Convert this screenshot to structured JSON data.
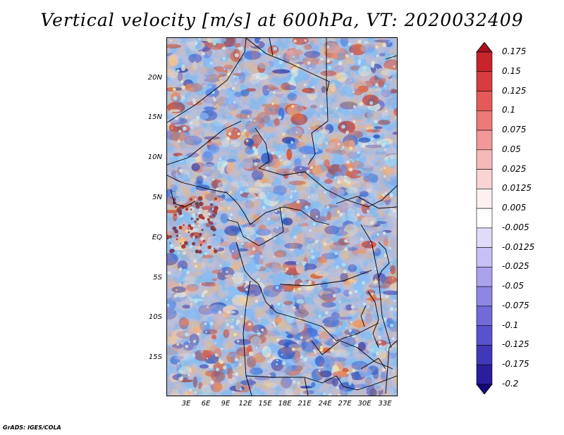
{
  "title": "Vertical velocity [m/s] at 600hPa, VT: 2020032409",
  "map": {
    "field": "Vertical velocity [m/s]",
    "level": "600hPa",
    "valid_time": "2020032409",
    "lat_labels": [
      "20N",
      "15N",
      "10N",
      "5N",
      "EQ",
      "5S",
      "10S",
      "15S"
    ],
    "lon_labels": [
      "3E",
      "6E",
      "9E",
      "12E",
      "15E",
      "18E",
      "21E",
      "24E",
      "27E",
      "30E",
      "33E"
    ]
  },
  "colorbar": {
    "labels": [
      "0.175",
      "0.15",
      "0.125",
      "0.1",
      "0.075",
      "0.05",
      "0.025",
      "0.0125",
      "0.005",
      "-0.005",
      "-0.0125",
      "-0.025",
      "-0.05",
      "-0.075",
      "-0.1",
      "-0.125",
      "-0.175",
      "-0.2"
    ],
    "colors": [
      "#a8101a",
      "#c8242c",
      "#d83c40",
      "#e45a58",
      "#ec7a78",
      "#f29898",
      "#f6b8b8",
      "#fad4d4",
      "#fdf0f0",
      "#ffffff",
      "#e0dcf8",
      "#c6c0f4",
      "#aaa2ec",
      "#8e86e4",
      "#726ad8",
      "#5a52cc",
      "#4038b8",
      "#2a1e9c",
      "#16087a"
    ]
  },
  "credit": "GrADS: IGES/COLA"
}
